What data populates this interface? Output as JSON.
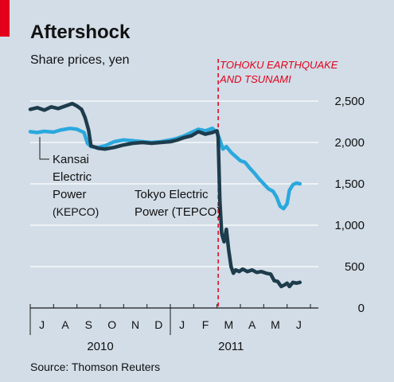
{
  "chart_data": {
    "type": "line",
    "title": "Aftershock",
    "subtitle": "Share prices, yen",
    "source": "Source: Thomson Reuters",
    "ylim": [
      0,
      2500
    ],
    "y_ticks": [
      0,
      500,
      1000,
      1500,
      2000,
      2500
    ],
    "y_tick_labels": [
      "0",
      "500",
      "1,000",
      "1,500",
      "2,000",
      "2,500"
    ],
    "x_months": [
      "J",
      "A",
      "S",
      "O",
      "N",
      "D",
      "J",
      "F",
      "M",
      "A",
      "M",
      "J"
    ],
    "x_years": [
      "2010",
      "2011"
    ],
    "event": {
      "label_line1": "TOHOKU EARTHQUAKE",
      "label_line2": "AND TSUNAMI",
      "month_index": 8.05
    },
    "colors": {
      "kepco": "#2aa8de",
      "tepco": "#1d3c4c",
      "event": "#e3001b",
      "accent": "#e3001b",
      "background": "#d2dde7",
      "gridline": "#ffffff"
    },
    "series": [
      {
        "name": "Kansai Electric Power (KEPCO)",
        "label_lines": [
          "Kansai",
          "Electric",
          "Power",
          "(KEPCO)"
        ],
        "points": [
          [
            0.0,
            2130
          ],
          [
            0.3,
            2120
          ],
          [
            0.6,
            2135
          ],
          [
            1.0,
            2125
          ],
          [
            1.3,
            2150
          ],
          [
            1.7,
            2170
          ],
          [
            2.0,
            2160
          ],
          [
            2.3,
            2120
          ],
          [
            2.45,
            1990
          ],
          [
            2.6,
            1950
          ],
          [
            2.9,
            1940
          ],
          [
            3.2,
            1960
          ],
          [
            3.6,
            2010
          ],
          [
            4.0,
            2030
          ],
          [
            4.4,
            2020
          ],
          [
            4.8,
            2010
          ],
          [
            5.2,
            2000
          ],
          [
            5.6,
            2010
          ],
          [
            6.0,
            2030
          ],
          [
            6.3,
            2050
          ],
          [
            6.6,
            2080
          ],
          [
            6.9,
            2120
          ],
          [
            7.2,
            2160
          ],
          [
            7.5,
            2140
          ],
          [
            7.8,
            2170
          ],
          [
            8.0,
            2120
          ],
          [
            8.1,
            2050
          ],
          [
            8.25,
            1920
          ],
          [
            8.4,
            1950
          ],
          [
            8.6,
            1880
          ],
          [
            8.8,
            1830
          ],
          [
            9.0,
            1780
          ],
          [
            9.2,
            1760
          ],
          [
            9.4,
            1690
          ],
          [
            9.6,
            1630
          ],
          [
            9.8,
            1560
          ],
          [
            10.0,
            1500
          ],
          [
            10.2,
            1440
          ],
          [
            10.4,
            1410
          ],
          [
            10.55,
            1340
          ],
          [
            10.7,
            1230
          ],
          [
            10.85,
            1200
          ],
          [
            11.0,
            1260
          ],
          [
            11.1,
            1420
          ],
          [
            11.25,
            1490
          ],
          [
            11.4,
            1510
          ],
          [
            11.55,
            1500
          ]
        ]
      },
      {
        "name": "Tokyo Electric Power (TEPCO)",
        "label_lines": [
          "Tokyo Electric",
          "Power (TEPCO)"
        ],
        "points": [
          [
            0.0,
            2400
          ],
          [
            0.3,
            2420
          ],
          [
            0.6,
            2390
          ],
          [
            0.9,
            2430
          ],
          [
            1.2,
            2410
          ],
          [
            1.5,
            2440
          ],
          [
            1.8,
            2470
          ],
          [
            2.0,
            2440
          ],
          [
            2.2,
            2400
          ],
          [
            2.35,
            2300
          ],
          [
            2.5,
            2150
          ],
          [
            2.6,
            1960
          ],
          [
            2.9,
            1930
          ],
          [
            3.2,
            1920
          ],
          [
            3.6,
            1940
          ],
          [
            4.0,
            1970
          ],
          [
            4.4,
            1990
          ],
          [
            4.8,
            2000
          ],
          [
            5.2,
            1990
          ],
          [
            5.6,
            2000
          ],
          [
            6.0,
            2010
          ],
          [
            6.3,
            2030
          ],
          [
            6.6,
            2060
          ],
          [
            6.9,
            2080
          ],
          [
            7.2,
            2130
          ],
          [
            7.5,
            2100
          ],
          [
            7.8,
            2120
          ],
          [
            8.0,
            2140
          ],
          [
            8.05,
            2060
          ],
          [
            8.12,
            1300
          ],
          [
            8.2,
            900
          ],
          [
            8.3,
            800
          ],
          [
            8.4,
            950
          ],
          [
            8.5,
            700
          ],
          [
            8.6,
            500
          ],
          [
            8.7,
            420
          ],
          [
            8.8,
            460
          ],
          [
            8.95,
            440
          ],
          [
            9.1,
            470
          ],
          [
            9.3,
            440
          ],
          [
            9.5,
            460
          ],
          [
            9.7,
            430
          ],
          [
            9.9,
            440
          ],
          [
            10.1,
            420
          ],
          [
            10.3,
            410
          ],
          [
            10.45,
            330
          ],
          [
            10.6,
            320
          ],
          [
            10.75,
            260
          ],
          [
            10.9,
            280
          ],
          [
            11.0,
            300
          ],
          [
            11.1,
            260
          ],
          [
            11.25,
            310
          ],
          [
            11.4,
            300
          ],
          [
            11.55,
            310
          ]
        ]
      }
    ]
  }
}
